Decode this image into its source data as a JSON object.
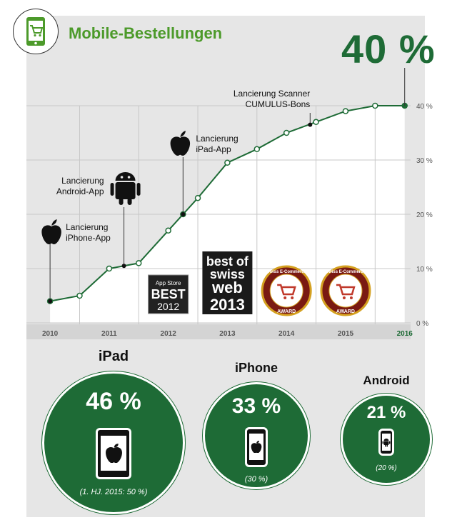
{
  "title": "Mobile-Bestellungen",
  "headline_value": "40 %",
  "icons": {
    "logo": "shopping-cart-phone-icon",
    "apple": "apple-icon",
    "android": "android-icon"
  },
  "colors": {
    "accent": "#4c9a2a",
    "dark_green": "#1e6b36",
    "panel": "#e6e6e6"
  },
  "chart_data": {
    "type": "line",
    "title": "Mobile-Bestellungen",
    "x_axis_labels": [
      "2010",
      "2011",
      "2012",
      "2013",
      "2014",
      "2015",
      "2016"
    ],
    "y_ticks": [
      "0 %",
      "10 %",
      "20 %",
      "30 %",
      "40 %"
    ],
    "ylim": [
      0,
      40
    ],
    "grid": true,
    "series": [
      {
        "x": [
          2010.0,
          2010.5,
          2011.0,
          2011.5,
          2012.0,
          2012.25,
          2012.5,
          2013.0,
          2013.5,
          2014.0,
          2014.5,
          2015.0,
          2015.5,
          2016.0
        ],
        "y": [
          4,
          5,
          10,
          11,
          17,
          20,
          23,
          29.5,
          32,
          35,
          37,
          39,
          40,
          40
        ]
      }
    ],
    "annotations": [
      {
        "text": "Lancierung iPhone-App",
        "lines": [
          "Lancierung",
          "iPhone-App"
        ],
        "x": 2010.0,
        "y": 4,
        "icon": "apple-icon"
      },
      {
        "text": "Lancierung Android-App",
        "lines": [
          "Lancierung",
          "Android-App"
        ],
        "x": 2011.25,
        "y": 10.5,
        "icon": "android-icon"
      },
      {
        "text": "Lancierung iPad-App",
        "lines": [
          "Lancierung",
          "iPad-App"
        ],
        "x": 2012.25,
        "y": 20,
        "icon": "apple-icon"
      },
      {
        "text": "Lancierung Scanner CUMULUS-Bons",
        "lines": [
          "Lancierung Scanner",
          "CUMULUS-Bons"
        ],
        "x": 2014.4,
        "y": 36.5,
        "icon": ""
      }
    ],
    "awards": [
      {
        "name": "appstore-best-2012-badge",
        "lines": [
          "App Store",
          "BEST",
          "2012"
        ],
        "x": 2012.0
      },
      {
        "name": "best-of-swiss-web-2013-badge",
        "lines": [
          "best of",
          "swiss",
          "web",
          "2013"
        ],
        "x": 2013.0
      },
      {
        "name": "swiss-ecommerce-award-badge",
        "lines": [
          "Swiss E-Commerce",
          "AWARD"
        ],
        "x": 2014.0
      },
      {
        "name": "swiss-ecommerce-award-badge-2",
        "lines": [
          "Swiss E-Commerce",
          "AWARD"
        ],
        "x": 2015.0
      }
    ]
  },
  "breakdown": [
    {
      "label": "iPad",
      "value": "46 %",
      "sub": "(1. HJ. 2015: 50 %)",
      "device": "tablet-icon"
    },
    {
      "label": "iPhone",
      "value": "33 %",
      "sub": "(30 %)",
      "device": "phone-icon"
    },
    {
      "label": "Android",
      "value": "21 %",
      "sub": "(20 %)",
      "device": "android-phone-icon"
    }
  ]
}
